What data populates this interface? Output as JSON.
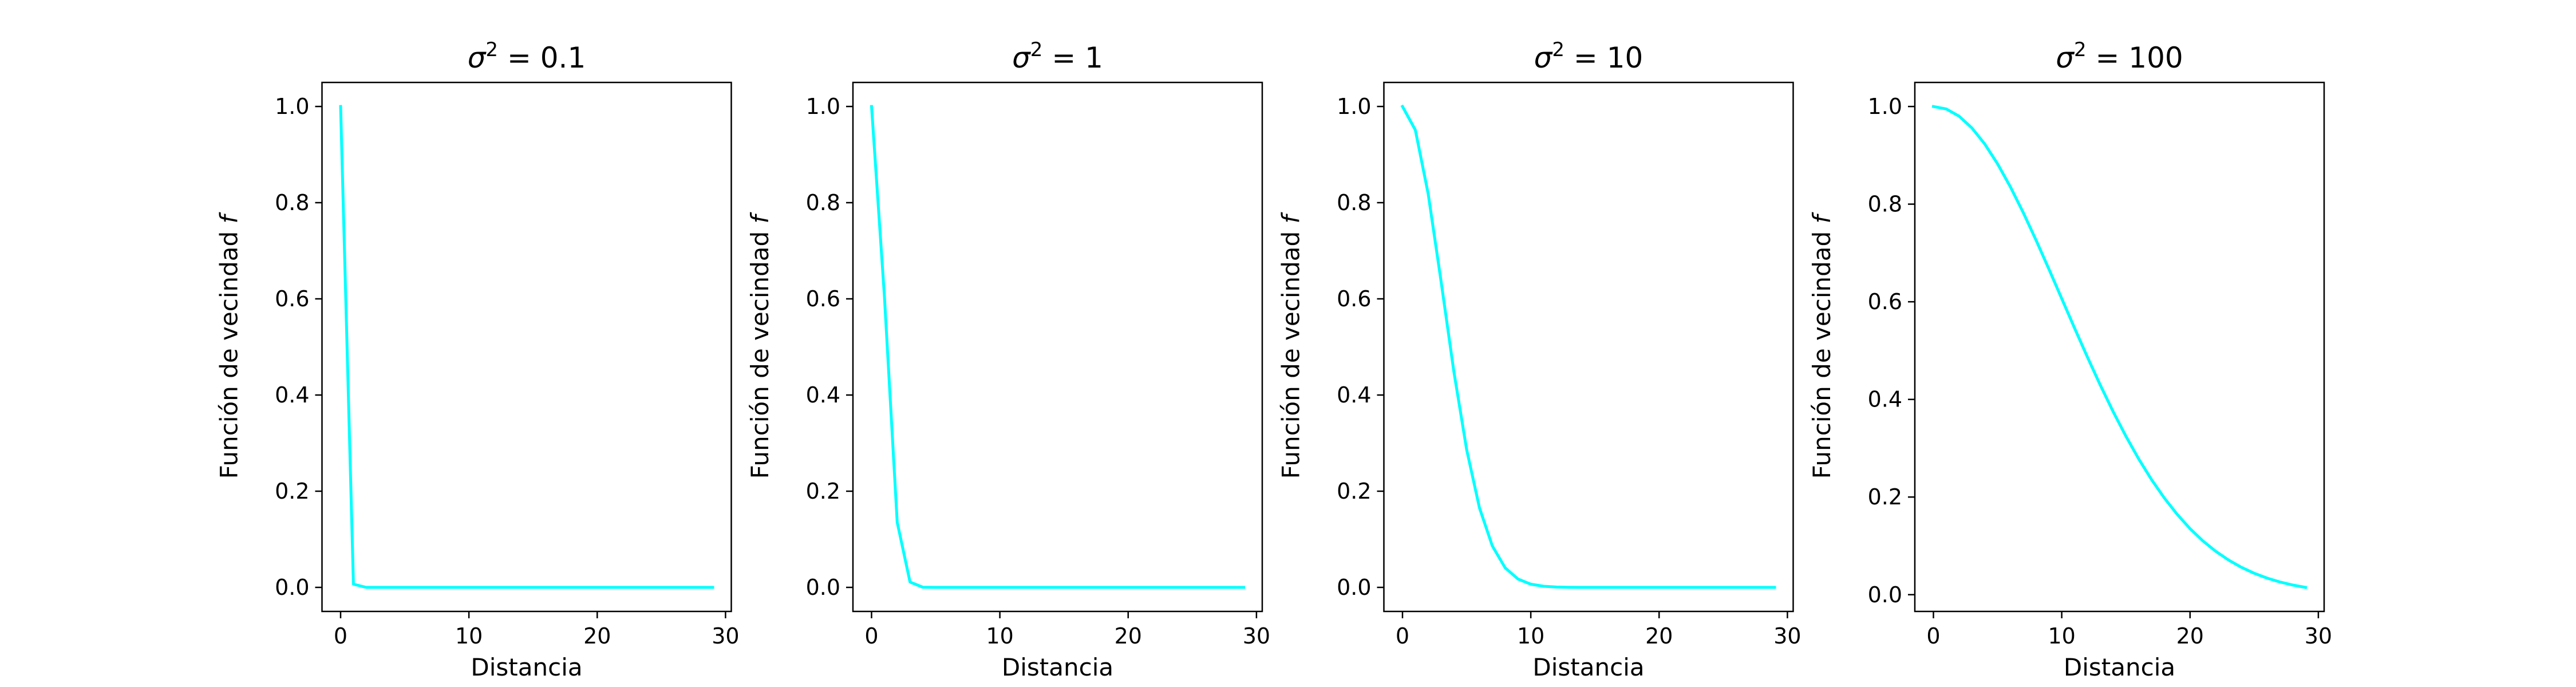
{
  "figure": {
    "line_color": "#00ffff",
    "background": "#ffffff"
  },
  "chart_data": [
    {
      "type": "line",
      "title": {
        "symbol": "σ",
        "exponent": "2",
        "value": " = 0.1"
      },
      "xlabel": "Distancia",
      "ylabel": "Función de vecindad ",
      "ylabel_italic": "f",
      "xlim": [
        -1.45,
        30.45
      ],
      "ylim": [
        -0.05,
        1.05
      ],
      "xticks": [
        0,
        10,
        20,
        30
      ],
      "yticks": [
        0.0,
        0.2,
        0.4,
        0.6,
        0.8,
        1.0
      ],
      "xtick_labels": [
        "0",
        "10",
        "20",
        "30"
      ],
      "ytick_labels": [
        "0.0",
        "0.2",
        "0.4",
        "0.6",
        "0.8",
        "1.0"
      ],
      "series": [
        {
          "color": "#00ffff",
          "x": [
            0,
            1,
            2,
            3,
            4,
            5,
            6,
            7,
            8,
            9,
            10,
            11,
            12,
            13,
            14,
            15,
            16,
            17,
            18,
            19,
            20,
            21,
            22,
            23,
            24,
            25,
            26,
            27,
            28,
            29
          ],
          "y": [
            1.0,
            0.0067,
            0.0,
            0.0,
            0.0,
            0.0,
            0.0,
            0.0,
            0.0,
            0.0,
            0.0,
            0.0,
            0.0,
            0.0,
            0.0,
            0.0,
            0.0,
            0.0,
            0.0,
            0.0,
            0.0,
            0.0,
            0.0,
            0.0,
            0.0,
            0.0,
            0.0,
            0.0,
            0.0,
            0.0
          ]
        }
      ]
    },
    {
      "type": "line",
      "title": {
        "symbol": "σ",
        "exponent": "2",
        "value": " = 1"
      },
      "xlabel": "Distancia",
      "ylabel": "Función de vecindad ",
      "ylabel_italic": "f",
      "xlim": [
        -1.45,
        30.45
      ],
      "ylim": [
        -0.05,
        1.05
      ],
      "xticks": [
        0,
        10,
        20,
        30
      ],
      "yticks": [
        0.0,
        0.2,
        0.4,
        0.6,
        0.8,
        1.0
      ],
      "xtick_labels": [
        "0",
        "10",
        "20",
        "30"
      ],
      "ytick_labels": [
        "0.0",
        "0.2",
        "0.4",
        "0.6",
        "0.8",
        "1.0"
      ],
      "series": [
        {
          "color": "#00ffff",
          "x": [
            0,
            1,
            2,
            3,
            4,
            5,
            6,
            7,
            8,
            9,
            10,
            11,
            12,
            13,
            14,
            15,
            16,
            17,
            18,
            19,
            20,
            21,
            22,
            23,
            24,
            25,
            26,
            27,
            28,
            29
          ],
          "y": [
            1.0,
            0.6065,
            0.1353,
            0.0111,
            0.0003,
            0.0,
            0.0,
            0.0,
            0.0,
            0.0,
            0.0,
            0.0,
            0.0,
            0.0,
            0.0,
            0.0,
            0.0,
            0.0,
            0.0,
            0.0,
            0.0,
            0.0,
            0.0,
            0.0,
            0.0,
            0.0,
            0.0,
            0.0,
            0.0,
            0.0
          ]
        }
      ]
    },
    {
      "type": "line",
      "title": {
        "symbol": "σ",
        "exponent": "2",
        "value": " = 10"
      },
      "xlabel": "Distancia",
      "ylabel": "Función de vecindad ",
      "ylabel_italic": "f",
      "xlim": [
        -1.45,
        30.45
      ],
      "ylim": [
        -0.05,
        1.05
      ],
      "xticks": [
        0,
        10,
        20,
        30
      ],
      "yticks": [
        0.0,
        0.2,
        0.4,
        0.6,
        0.8,
        1.0
      ],
      "xtick_labels": [
        "0",
        "10",
        "20",
        "30"
      ],
      "ytick_labels": [
        "0.0",
        "0.2",
        "0.4",
        "0.6",
        "0.8",
        "1.0"
      ],
      "series": [
        {
          "color": "#00ffff",
          "x": [
            0,
            1,
            2,
            3,
            4,
            5,
            6,
            7,
            8,
            9,
            10,
            11,
            12,
            13,
            14,
            15,
            16,
            17,
            18,
            19,
            20,
            21,
            22,
            23,
            24,
            25,
            26,
            27,
            28,
            29
          ],
          "y": [
            1.0,
            0.9512,
            0.8187,
            0.6376,
            0.4493,
            0.2865,
            0.1653,
            0.0863,
            0.0408,
            0.0174,
            0.0067,
            0.0024,
            0.0007,
            0.0002,
            0.0,
            0.0,
            0.0,
            0.0,
            0.0,
            0.0,
            0.0,
            0.0,
            0.0,
            0.0,
            0.0,
            0.0,
            0.0,
            0.0,
            0.0,
            0.0
          ]
        }
      ]
    },
    {
      "type": "line",
      "title": {
        "symbol": "σ",
        "exponent": "2",
        "value": " = 100"
      },
      "xlabel": "Distancia",
      "ylabel": "Función de vecindad ",
      "ylabel_italic": "f",
      "xlim": [
        -1.45,
        30.45
      ],
      "ylim": [
        -0.0343,
        1.0493
      ],
      "xticks": [
        0,
        10,
        20,
        30
      ],
      "yticks": [
        0.0,
        0.2,
        0.4,
        0.6,
        0.8,
        1.0
      ],
      "xtick_labels": [
        "0",
        "10",
        "20",
        "30"
      ],
      "ytick_labels": [
        "0.0",
        "0.2",
        "0.4",
        "0.6",
        "0.8",
        "1.0"
      ],
      "series": [
        {
          "color": "#00ffff",
          "x": [
            0,
            1,
            2,
            3,
            4,
            5,
            6,
            7,
            8,
            9,
            10,
            11,
            12,
            13,
            14,
            15,
            16,
            17,
            18,
            19,
            20,
            21,
            22,
            23,
            24,
            25,
            26,
            27,
            28,
            29
          ],
          "y": [
            1.0,
            0.995,
            0.9802,
            0.956,
            0.9231,
            0.8825,
            0.8353,
            0.7827,
            0.7261,
            0.667,
            0.6065,
            0.5461,
            0.4868,
            0.4296,
            0.3753,
            0.3247,
            0.278,
            0.2357,
            0.1979,
            0.1645,
            0.1353,
            0.1102,
            0.0889,
            0.071,
            0.0561,
            0.0439,
            0.034,
            0.0261,
            0.0198,
            0.0149
          ]
        }
      ]
    }
  ]
}
